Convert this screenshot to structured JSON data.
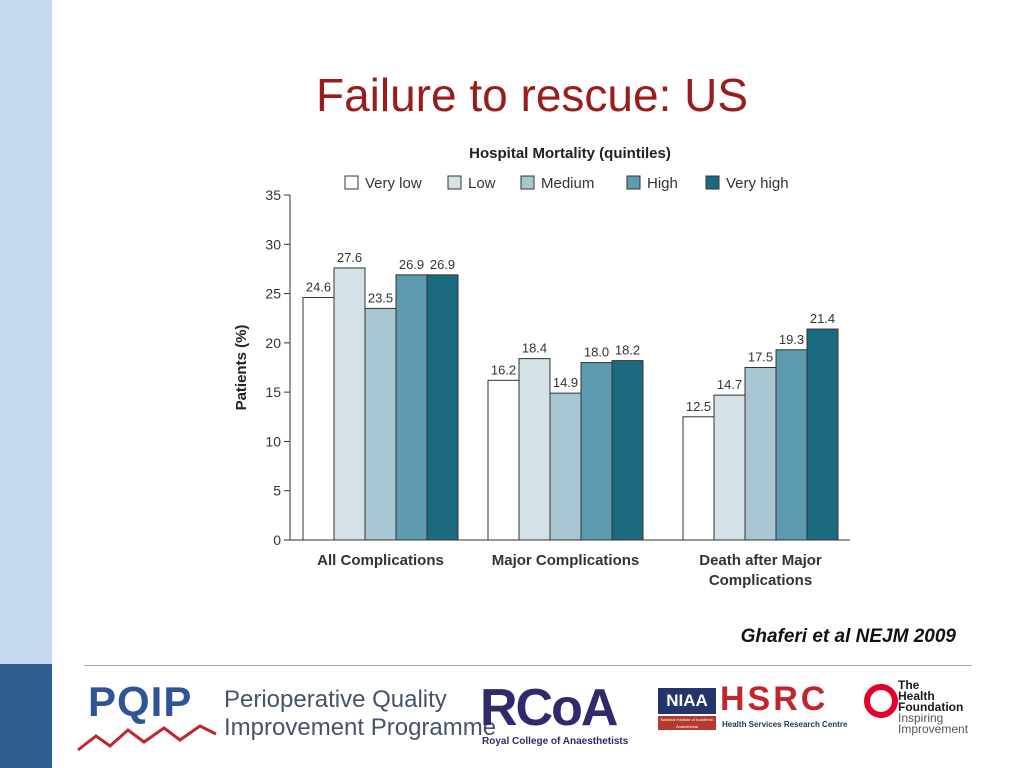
{
  "slide": {
    "title": "Failure to rescue: US",
    "citation": "Ghaferi et al NEJM 2009"
  },
  "colors": {
    "title": "#9b1c1c",
    "sidebar_light": "#c6d9f0",
    "sidebar_dark": "#2e5d91"
  },
  "chart_data": {
    "type": "bar",
    "title": "Hospital Mortality (quintiles)",
    "ylabel": "Patients (%)",
    "xlabel": "",
    "categories": [
      [
        "All Complications"
      ],
      [
        "Major Complications"
      ],
      [
        "Death after Major",
        "Complications"
      ]
    ],
    "ylim": [
      0,
      35
    ],
    "yticks": [
      0,
      5,
      10,
      15,
      20,
      25,
      30,
      35
    ],
    "legend_position": "top",
    "series": [
      {
        "name": "Very low",
        "color": "#ffffff",
        "values": [
          24.6,
          16.2,
          12.5
        ]
      },
      {
        "name": "Low",
        "color": "#d4e1e6",
        "values": [
          27.6,
          18.4,
          14.7
        ]
      },
      {
        "name": "Medium",
        "color": "#a8c5d2",
        "values": [
          23.5,
          14.9,
          17.5
        ]
      },
      {
        "name": "High",
        "color": "#5e9ab0",
        "values": [
          26.9,
          18.0,
          19.3
        ]
      },
      {
        "name": "Very high",
        "color": "#1b6a80",
        "values": [
          26.9,
          18.2,
          21.4
        ]
      }
    ]
  },
  "footer": {
    "pqip": {
      "mark": "PQIP",
      "line1": "Perioperative Quality",
      "line2": "Improvement Programme"
    },
    "rcoa": {
      "mark": "RCoA",
      "sub": "Royal College of Anaesthetists"
    },
    "niaa": {
      "mark": "NIAA",
      "sub": "National Institute of Academic Anaesthesia"
    },
    "hsrc": {
      "mark": "HSRC",
      "sub": "Health Services Research Centre"
    },
    "health": {
      "line1": "The",
      "line2": "Health",
      "line3": "Foundation",
      "line4": "Inspiring",
      "line5": "Improvement"
    }
  }
}
